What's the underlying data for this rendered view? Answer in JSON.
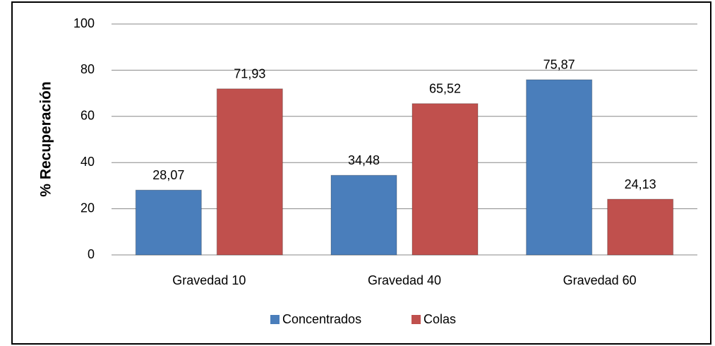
{
  "chart_data": {
    "type": "bar",
    "y_axis_label": "% Recuperación",
    "categories": [
      "Gravedad 10",
      "Gravedad 40",
      "Gravedad 60"
    ],
    "series": [
      {
        "name": "Concentrados",
        "color": "#4a7ebb",
        "values": [
          28.07,
          34.48,
          75.87
        ],
        "value_labels": [
          "28,07",
          "34,48",
          "75,87"
        ]
      },
      {
        "name": "Colas",
        "color": "#c0504d",
        "values": [
          71.93,
          65.52,
          24.13
        ],
        "value_labels": [
          "71,93",
          "65,52",
          "24,13"
        ]
      }
    ],
    "ylim": [
      0,
      100
    ],
    "yticks": [
      0,
      20,
      40,
      60,
      80,
      100
    ],
    "grid": true,
    "legend": "bottom"
  }
}
